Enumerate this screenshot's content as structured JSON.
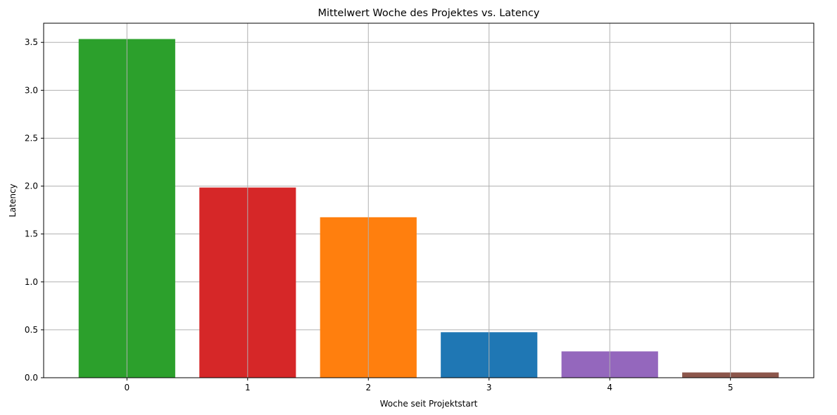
{
  "chart_data": {
    "type": "bar",
    "title": "Mittelwert Woche des Projektes vs. Latency",
    "xlabel": "Woche seit Projektstart",
    "ylabel": "Latency",
    "categories": [
      "0",
      "1",
      "2",
      "3",
      "4",
      "5"
    ],
    "values": [
      3.535,
      1.985,
      1.675,
      0.475,
      0.275,
      0.055
    ],
    "colors": [
      "#2ca02c",
      "#d62728",
      "#ff7f0e",
      "#1f77b4",
      "#9467bd",
      "#8c564b"
    ],
    "ylim": [
      0,
      3.7
    ],
    "yticks": [
      "0.0",
      "0.5",
      "1.0",
      "1.5",
      "2.0",
      "2.5",
      "3.0",
      "3.5"
    ],
    "grid": true,
    "grid_color": "#b0b0b0"
  }
}
